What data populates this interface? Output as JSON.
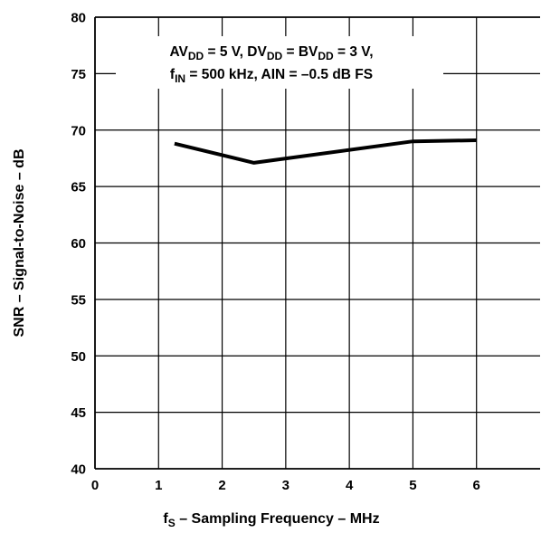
{
  "chart_data": {
    "type": "line",
    "title": "",
    "xlabel": {
      "main": "f",
      "sub": "S",
      "rest": " – Sampling Frequency – MHz"
    },
    "ylabel": "SNR – Signal-to-Noise – dB",
    "xlim": [
      0,
      7
    ],
    "ylim": [
      40,
      80
    ],
    "x_ticks": [
      0,
      1,
      2,
      3,
      4,
      5,
      6
    ],
    "x_tick_labels": [
      "0",
      "1",
      "2",
      "3",
      "4",
      "5",
      "6"
    ],
    "y_ticks": [
      40,
      45,
      50,
      55,
      60,
      65,
      70,
      75,
      80
    ],
    "y_tick_labels": [
      "40",
      "45",
      "50",
      "55",
      "60",
      "65",
      "70",
      "75",
      "80"
    ],
    "grid": true,
    "line_color": "#000000",
    "series": [
      {
        "x": [
          1.25,
          2.5,
          5,
          6
        ],
        "y": [
          68.8,
          67.1,
          69,
          69.1
        ]
      }
    ],
    "annotation": {
      "line1": [
        {
          "text": "AV",
          "sub": false
        },
        {
          "text": "DD",
          "sub": true
        },
        {
          "text": " = 5 V, DV",
          "sub": false
        },
        {
          "text": "DD",
          "sub": true
        },
        {
          "text": " = BV",
          "sub": false
        },
        {
          "text": "DD",
          "sub": true
        },
        {
          "text": " = 3 V,",
          "sub": false
        }
      ],
      "line2": [
        {
          "text": "f",
          "sub": false
        },
        {
          "text": "IN",
          "sub": true
        },
        {
          "text": " = 500 kHz, AIN = –0.5 dB FS",
          "sub": false
        }
      ]
    }
  }
}
